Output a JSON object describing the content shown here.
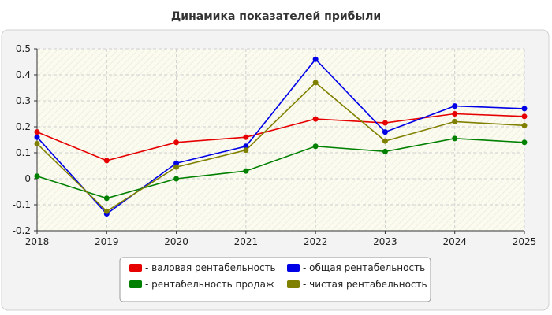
{
  "chart_data": {
    "type": "line",
    "title": "Динамика показателей прибыли",
    "x": [
      "2018",
      "2019",
      "2020",
      "2021",
      "2022",
      "2023",
      "2024",
      "2025"
    ],
    "ylim": [
      -0.2,
      0.5
    ],
    "yticks": [
      "-0.2",
      "-0.1",
      "0",
      "0.1",
      "0.2",
      "0.3",
      "0.4",
      "0.5"
    ],
    "grid": true,
    "legend_position": "bottom",
    "series": [
      {
        "name": "- валовая рентабельность",
        "color": "#e60000",
        "values": [
          0.18,
          0.07,
          0.14,
          0.16,
          0.23,
          0.215,
          0.25,
          0.24
        ]
      },
      {
        "name": "- общая рентабельность",
        "color": "#0000e6",
        "values": [
          0.16,
          -0.135,
          0.06,
          0.125,
          0.46,
          0.18,
          0.28,
          0.27
        ]
      },
      {
        "name": "- рентабельность продаж",
        "color": "#008000",
        "values": [
          0.01,
          -0.075,
          0.0,
          0.03,
          0.125,
          0.105,
          0.155,
          0.14
        ]
      },
      {
        "name": "- чистая рентабельность",
        "color": "#808000",
        "values": [
          0.135,
          -0.125,
          0.045,
          0.11,
          0.37,
          0.145,
          0.22,
          0.205
        ]
      }
    ]
  }
}
